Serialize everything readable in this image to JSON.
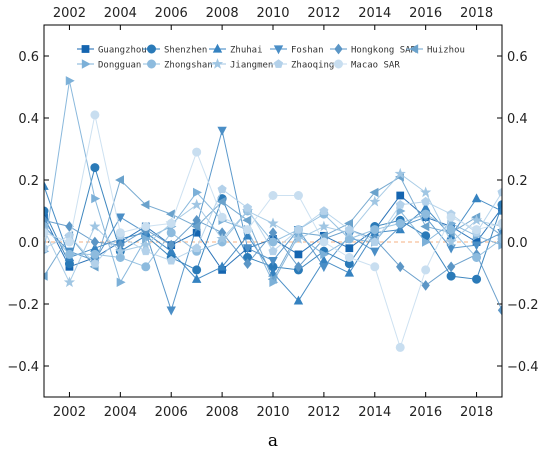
{
  "chart_data": {
    "type": "line",
    "title": "",
    "xlabel": "a",
    "ylabel": "",
    "xlim": [
      2001,
      2019
    ],
    "ylim": [
      -0.5,
      0.7
    ],
    "x_ticks": [
      2002,
      2004,
      2006,
      2008,
      2010,
      2012,
      2014,
      2016,
      2018
    ],
    "y_ticks": [
      -0.4,
      -0.2,
      0.0,
      0.2,
      0.4,
      0.6
    ],
    "y_tick_labels": [
      "−0.4",
      "−0.2",
      "0.0",
      "0.2",
      "0.4",
      "0.6"
    ],
    "reference_line": {
      "y": 0.0,
      "style": "dashed",
      "color": "#f4b183"
    },
    "grid": false,
    "legend_position": "top",
    "x": [
      2001,
      2002,
      2003,
      2004,
      2005,
      2006,
      2007,
      2008,
      2009,
      2010,
      2011,
      2012,
      2013,
      2014,
      2015,
      2016,
      2017,
      2018,
      2019
    ],
    "series": [
      {
        "name": "Guangzhou",
        "marker": "square",
        "color": "#1565b0",
        "values": [
          0.08,
          -0.08,
          -0.05,
          0.0,
          0.05,
          -0.01,
          0.03,
          -0.09,
          -0.02,
          0.01,
          -0.04,
          0.02,
          -0.02,
          0.04,
          0.15,
          0.08,
          0.05,
          0.0,
          0.11
        ]
      },
      {
        "name": "Shenzhen",
        "marker": "circle",
        "color": "#2a7ab8",
        "values": [
          0.1,
          -0.07,
          0.24,
          -0.03,
          0.02,
          -0.05,
          -0.09,
          0.14,
          -0.05,
          -0.08,
          -0.09,
          -0.03,
          -0.07,
          0.05,
          0.07,
          0.02,
          -0.11,
          -0.12,
          0.12
        ]
      },
      {
        "name": "Zhuhai",
        "marker": "triangle-up",
        "color": "#3582c0",
        "values": [
          0.18,
          -0.05,
          -0.02,
          0.01,
          0.03,
          -0.03,
          -0.12,
          -0.08,
          0.02,
          -0.1,
          -0.19,
          -0.06,
          -0.1,
          0.03,
          0.04,
          0.11,
          0.02,
          0.14,
          0.1
        ]
      },
      {
        "name": "Foshan",
        "marker": "triangle-down",
        "color": "#4a8ec6",
        "values": [
          0.05,
          -0.03,
          -0.06,
          0.08,
          0.03,
          -0.22,
          0.05,
          0.36,
          -0.02,
          -0.06,
          0.04,
          -0.08,
          0.02,
          -0.03,
          0.05,
          0.08,
          -0.02,
          -0.01,
          0.03
        ]
      },
      {
        "name": "Hongkong SAR",
        "marker": "diamond",
        "color": "#5b96c6",
        "values": [
          0.07,
          0.05,
          0.0,
          -0.01,
          0.04,
          -0.01,
          0.07,
          0.03,
          -0.07,
          0.03,
          -0.08,
          0.01,
          0.04,
          0.01,
          -0.08,
          -0.14,
          -0.08,
          -0.04,
          -0.22
        ]
      },
      {
        "name": "Huizhou",
        "marker": "triangle-left",
        "color": "#6aa2cc",
        "values": [
          -0.11,
          0.02,
          -0.08,
          0.2,
          0.12,
          0.09,
          0.05,
          0.13,
          0.07,
          -0.12,
          0.03,
          0.02,
          0.06,
          0.16,
          0.21,
          0.05,
          0.03,
          0.08,
          0.02
        ]
      },
      {
        "name": "Dongguan",
        "marker": "triangle-right",
        "color": "#7cb0d8",
        "values": [
          -0.03,
          0.52,
          0.14,
          -0.13,
          0.01,
          0.05,
          0.16,
          0.07,
          0.04,
          -0.13,
          0.02,
          -0.04,
          0.01,
          0.0,
          0.1,
          0.0,
          0.06,
          0.02,
          -0.01
        ]
      },
      {
        "name": "Zhongshan",
        "marker": "circle",
        "color": "#8dbbde",
        "values": [
          0.05,
          -0.04,
          -0.04,
          -0.05,
          -0.08,
          0.03,
          -0.03,
          0.0,
          0.1,
          0.0,
          0.04,
          0.09,
          0.01,
          0.04,
          0.06,
          0.09,
          0.04,
          -0.05,
          0.01
        ]
      },
      {
        "name": "Jiangmen",
        "marker": "star",
        "color": "#a0c6e3",
        "values": [
          0.04,
          -0.13,
          0.05,
          -0.03,
          -0.01,
          0.06,
          0.12,
          0.01,
          0.1,
          0.06,
          0.01,
          0.05,
          0.03,
          0.13,
          0.22,
          0.16,
          0.0,
          0.07,
          0.05
        ]
      },
      {
        "name": "Zhaoqing",
        "marker": "pentagon",
        "color": "#b3d1ea",
        "values": [
          -0.02,
          0.02,
          -0.07,
          0.02,
          -0.03,
          -0.06,
          -0.02,
          0.17,
          0.11,
          -0.03,
          0.04,
          0.1,
          0.04,
          0.0,
          0.12,
          0.13,
          0.09,
          0.03,
          0.16
        ]
      },
      {
        "name": "Macao SAR",
        "marker": "circle",
        "color": "#c8def0",
        "values": [
          0.03,
          0.0,
          0.41,
          0.03,
          0.05,
          0.06,
          0.29,
          0.08,
          0.04,
          0.15,
          0.15,
          0.0,
          -0.05,
          -0.08,
          -0.34,
          -0.09,
          0.08,
          0.04,
          0.06
        ]
      }
    ]
  }
}
